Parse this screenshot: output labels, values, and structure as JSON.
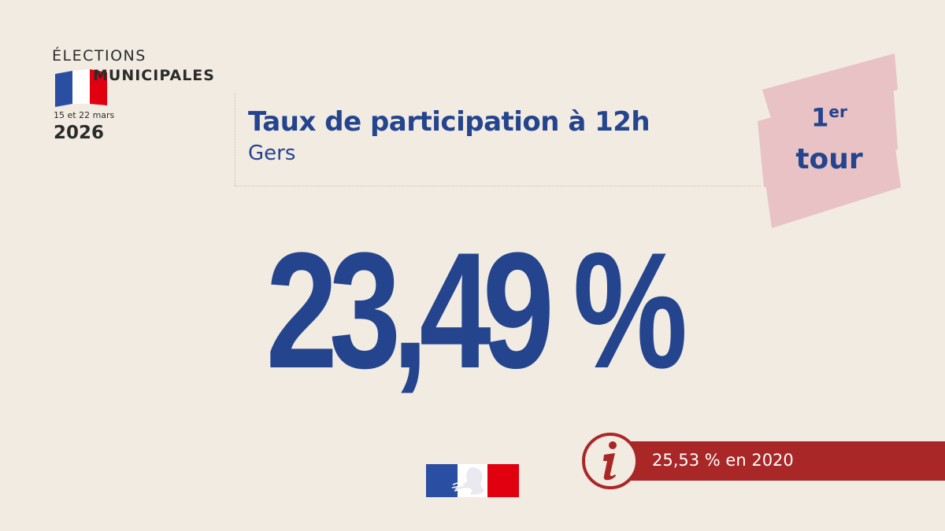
{
  "logo": {
    "line1": "ÉLECTIONS",
    "line2": "MUNICIPALES",
    "dates": "15 et 22 mars",
    "year": "2026"
  },
  "title": {
    "main": "Taux de participation à 12h",
    "sub": "Gers"
  },
  "tour_badge": {
    "number": "1",
    "suffix": "er",
    "word": "tour"
  },
  "participation": {
    "value": "23,49 %"
  },
  "comparison": {
    "text": "25,53 % en 2020"
  },
  "colors": {
    "background": "#f2ebe2",
    "primary_blue": "#24448e",
    "info_red": "#a92727",
    "badge_pink": "#e8c2c4",
    "flag_blue": "#2a4ea2",
    "flag_red": "#e1000f"
  },
  "icons": {
    "info": "info-icon",
    "flag": "french-flag-icon",
    "marianne": "marianne-logo"
  }
}
